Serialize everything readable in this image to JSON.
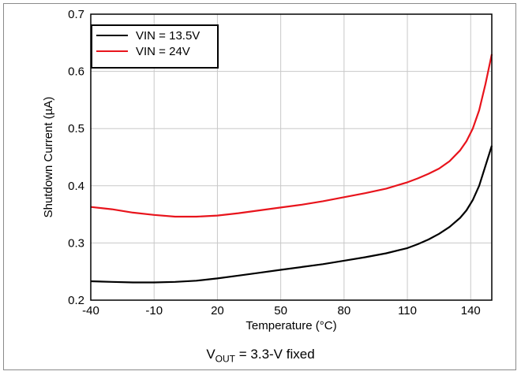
{
  "chart_data": {
    "type": "line",
    "title": "",
    "xlabel": "Temperature (°C)",
    "ylabel": "Shutdown Current (µA)",
    "xlim": [
      -40,
      150
    ],
    "ylim": [
      0.2,
      0.7
    ],
    "xticks": [
      -40,
      -10,
      20,
      50,
      80,
      110,
      140
    ],
    "xtick_labels": [
      "-40",
      "-10",
      "20",
      "50",
      "80",
      "110",
      "140"
    ],
    "yticks": [
      0.2,
      0.3,
      0.4,
      0.5,
      0.6,
      0.7
    ],
    "ytick_labels": [
      "0.2",
      "0.3",
      "0.4",
      "0.5",
      "0.6",
      "0.7"
    ],
    "grid": true,
    "legend_position": "top-left",
    "series": [
      {
        "name": "VIN = 13.5V",
        "color": "#000000",
        "x": [
          -40,
          -30,
          -20,
          -10,
          0,
          10,
          20,
          30,
          40,
          50,
          60,
          70,
          80,
          90,
          100,
          110,
          115,
          120,
          125,
          130,
          135,
          138,
          141,
          144,
          147,
          150
        ],
        "y": [
          0.233,
          0.232,
          0.231,
          0.231,
          0.232,
          0.234,
          0.238,
          0.243,
          0.248,
          0.253,
          0.258,
          0.263,
          0.269,
          0.275,
          0.282,
          0.291,
          0.298,
          0.306,
          0.316,
          0.328,
          0.344,
          0.357,
          0.375,
          0.4,
          0.435,
          0.47
        ]
      },
      {
        "name": "VIN = 24V",
        "color": "#e8141c",
        "x": [
          -40,
          -30,
          -20,
          -10,
          0,
          10,
          20,
          30,
          40,
          50,
          60,
          70,
          80,
          90,
          100,
          110,
          115,
          120,
          125,
          130,
          135,
          138,
          141,
          144,
          147,
          150
        ],
        "y": [
          0.363,
          0.359,
          0.353,
          0.349,
          0.346,
          0.346,
          0.348,
          0.352,
          0.357,
          0.362,
          0.367,
          0.373,
          0.38,
          0.387,
          0.395,
          0.406,
          0.413,
          0.421,
          0.43,
          0.443,
          0.462,
          0.478,
          0.5,
          0.532,
          0.578,
          0.63
        ]
      }
    ],
    "annotation": {
      "prefix": "V",
      "subscript": "OUT",
      "suffix": " = 3.3-V fixed"
    }
  }
}
